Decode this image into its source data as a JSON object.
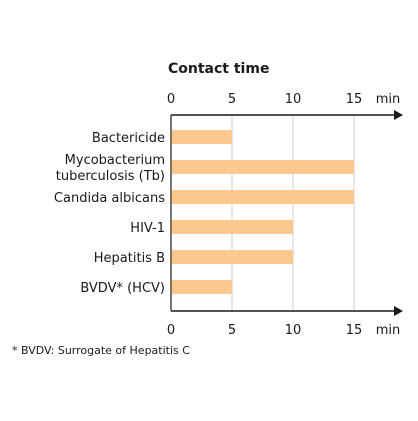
{
  "chart_data": {
    "type": "bar",
    "orientation": "horizontal",
    "title": "Contact time",
    "categories": [
      [
        "Bactericide"
      ],
      [
        "Mycobacterium",
        "tuberculosis (Tb)"
      ],
      [
        "Candida albicans"
      ],
      [
        "HIV-1"
      ],
      [
        "Hepatitis B"
      ],
      [
        "BVDV* (HCV)"
      ]
    ],
    "values": [
      5,
      15,
      15,
      10,
      10,
      5
    ],
    "xticks": [
      0,
      5,
      10,
      15
    ],
    "xunit": "min",
    "xlim": [
      0,
      18
    ],
    "grid": true,
    "bar_color": "#fbc98d",
    "grid_color": "#cfcfcf",
    "axis_color": "#1a1a1a",
    "axes": [
      "top",
      "bottom"
    ]
  },
  "footnote": "* BVDV: Surrogate of Hepatitis C"
}
